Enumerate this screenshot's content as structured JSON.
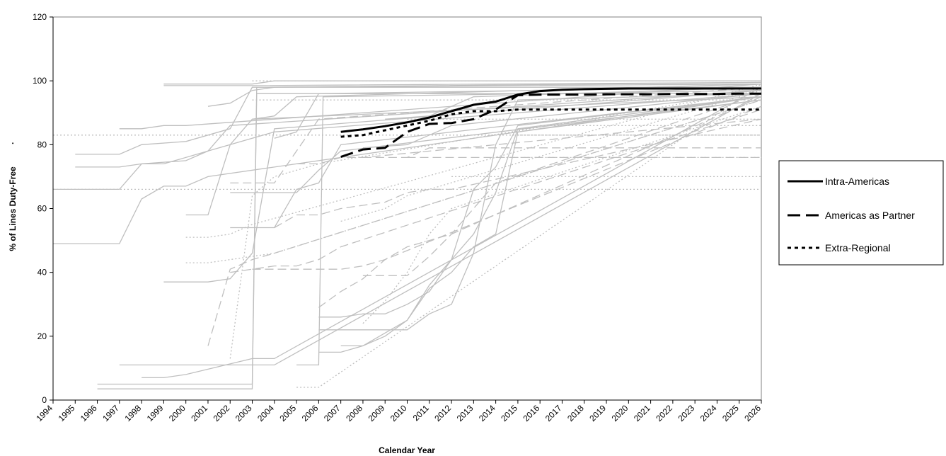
{
  "chart_data": {
    "type": "line",
    "title": "",
    "xlabel": "Calendar Year",
    "ylabel": "% of Lines Duty-Free",
    "ylabel_suffix": "·",
    "xlim": [
      1994,
      2026
    ],
    "ylim": [
      0,
      120
    ],
    "y_ticks": [
      0,
      20,
      40,
      60,
      80,
      100,
      120
    ],
    "x_ticks": [
      "1994",
      "1995",
      "1996",
      "1997",
      "1998",
      "1999",
      "2000",
      "2001",
      "2002",
      "2003",
      "2004",
      "2005",
      "2006",
      "2007",
      "2008",
      "2009",
      "2010",
      "2011",
      "2012",
      "2013",
      "2014",
      "2015",
      "2016",
      "2017",
      "2018",
      "2019",
      "2020",
      "2021",
      "2022",
      "2023",
      "2024",
      "2025",
      "2026"
    ],
    "grid": false,
    "legend_position": "right",
    "colors": {
      "highlight": "#000000",
      "background_series": "#bfbfbf",
      "plot_border": "#808080"
    },
    "series": [
      {
        "name": "Intra-Americas",
        "style": "solid",
        "x": [
          2007,
          2008,
          2009,
          2010,
          2011,
          2012,
          2013,
          2014,
          2015,
          2016,
          2017,
          2018,
          2019,
          2020,
          2021,
          2022,
          2023,
          2024,
          2025,
          2026
        ],
        "values": [
          84.0,
          84.8,
          85.8,
          87.0,
          88.5,
          90.5,
          92.5,
          93.5,
          95.7,
          96.8,
          97.2,
          97.4,
          97.5,
          97.6,
          97.6,
          97.6,
          97.6,
          97.6,
          97.6,
          97.6
        ]
      },
      {
        "name": "Americas as Partner",
        "style": "longdash",
        "x": [
          2007,
          2008,
          2009,
          2010,
          2011,
          2012,
          2013,
          2014,
          2015,
          2016,
          2017,
          2018,
          2019,
          2020,
          2021,
          2022,
          2023,
          2024,
          2025,
          2026
        ],
        "values": [
          76.2,
          78.5,
          79.0,
          84.0,
          86.5,
          86.8,
          88.0,
          91.0,
          95.5,
          95.7,
          95.7,
          95.7,
          95.8,
          95.8,
          95.8,
          95.9,
          95.9,
          95.9,
          96.0,
          96.0
        ]
      },
      {
        "name": "Extra-Regional",
        "style": "shortdash",
        "x": [
          2007,
          2008,
          2009,
          2010,
          2011,
          2012,
          2013,
          2014,
          2015,
          2016,
          2017,
          2018,
          2019,
          2020,
          2021,
          2022,
          2023,
          2024,
          2025,
          2026
        ],
        "values": [
          82.5,
          83.0,
          84.5,
          86.0,
          87.5,
          89.5,
          90.5,
          90.5,
          91.0,
          91.0,
          91.0,
          91.0,
          91.0,
          91.0,
          91.0,
          91.0,
          91.0,
          91.0,
          91.0,
          91.0
        ]
      }
    ],
    "background_series": [
      {
        "style": "solid",
        "x": [
          1994,
          1997,
          1998,
          1999,
          2000,
          2001,
          2026
        ],
        "values": [
          49,
          49,
          63,
          67,
          67,
          70,
          95
        ]
      },
      {
        "style": "solid",
        "x": [
          1994,
          1997,
          1998,
          2000,
          2001,
          2003,
          2004,
          2026
        ],
        "values": [
          66,
          66,
          74,
          75,
          78,
          82,
          84,
          96
        ]
      },
      {
        "style": "solid",
        "x": [
          1995,
          1997,
          1998,
          2000,
          2002,
          2003,
          2026
        ],
        "values": [
          77,
          77,
          80,
          81,
          85,
          98,
          99
        ]
      },
      {
        "style": "solid",
        "x": [
          1995,
          1997,
          1998,
          1999,
          2001,
          2002,
          2026
        ],
        "values": [
          73,
          73,
          74,
          74,
          78,
          86,
          97
        ]
      },
      {
        "style": "solid",
        "x": [
          1997,
          1998,
          1999,
          2000,
          2026
        ],
        "values": [
          85,
          85,
          86,
          86,
          99
        ]
      },
      {
        "style": "solid",
        "x": [
          1999,
          2003,
          2004,
          2026
        ],
        "values": [
          99,
          99,
          100,
          100
        ]
      },
      {
        "style": "solid",
        "x": [
          1999,
          2003,
          2026
        ],
        "values": [
          98.5,
          98.5,
          99.5
        ]
      },
      {
        "style": "solid",
        "x": [
          1996,
          2003,
          2003.2,
          2026
        ],
        "values": [
          5,
          5,
          98,
          98
        ]
      },
      {
        "style": "solid",
        "x": [
          1996,
          2003,
          2003.2,
          2026
        ],
        "values": [
          3.5,
          3.5,
          96,
          96
        ]
      },
      {
        "style": "solid",
        "x": [
          1998,
          1999,
          2000,
          2003,
          2004,
          2026
        ],
        "values": [
          7,
          7,
          8,
          13,
          13,
          98
        ]
      },
      {
        "style": "solid",
        "x": [
          1997,
          2003,
          2004,
          2026
        ],
        "values": [
          11,
          11,
          11,
          96
        ]
      },
      {
        "style": "solid",
        "x": [
          1999,
          2001,
          2002,
          2003,
          2004,
          2026
        ],
        "values": [
          37,
          37,
          38,
          46,
          85,
          97
        ]
      },
      {
        "style": "solid",
        "x": [
          2000,
          2001,
          2002,
          2003,
          2026
        ],
        "values": [
          58,
          58,
          80,
          88,
          95
        ]
      },
      {
        "style": "solid",
        "x": [
          2002,
          2004,
          2005,
          2006,
          2007,
          2026
        ],
        "values": [
          54,
          54,
          66,
          68,
          80,
          95
        ]
      },
      {
        "style": "solid",
        "x": [
          2002,
          2005,
          2006,
          2007,
          2026
        ],
        "values": [
          65,
          65,
          72,
          78,
          94
        ]
      },
      {
        "style": "solid",
        "x": [
          2005,
          2006,
          2006.2,
          2026
        ],
        "values": [
          11,
          11,
          95,
          97
        ]
      },
      {
        "style": "solid",
        "x": [
          2006,
          2007,
          2008,
          2009,
          2010,
          2011,
          2012,
          2013,
          2014,
          2015,
          2026
        ],
        "values": [
          22,
          22,
          22,
          22,
          22,
          27,
          30,
          46,
          80,
          94,
          96
        ]
      },
      {
        "style": "solid",
        "x": [
          2006,
          2007,
          2008,
          2009,
          2010,
          2011,
          2012,
          2013,
          2014,
          2015,
          2026
        ],
        "values": [
          26,
          26,
          27,
          27,
          30,
          34,
          44,
          52,
          65,
          85,
          95
        ]
      },
      {
        "style": "solid",
        "x": [
          2006,
          2007,
          2008,
          2009,
          2010,
          2011,
          2012,
          2013,
          2014,
          2015,
          2026
        ],
        "values": [
          15,
          15,
          17,
          20,
          25,
          36,
          44,
          66,
          73,
          86,
          95
        ]
      },
      {
        "style": "solid",
        "x": [
          2007,
          2008,
          2009,
          2010,
          2011,
          2012,
          2013,
          2014,
          2015,
          2026
        ],
        "values": [
          17,
          17,
          21,
          25,
          35,
          40,
          48,
          52,
          84,
          94
        ]
      },
      {
        "style": "solid",
        "x": [
          2004,
          2005,
          2006,
          2026
        ],
        "values": [
          82,
          84,
          96,
          98
        ]
      },
      {
        "style": "solid",
        "x": [
          2003,
          2004,
          2005,
          2026
        ],
        "values": [
          88,
          89,
          95,
          99
        ]
      },
      {
        "style": "solid",
        "x": [
          2001,
          2002,
          2003,
          2004,
          2026
        ],
        "values": [
          92,
          93,
          97,
          98,
          99.5
        ]
      },
      {
        "style": "solid",
        "x": [
          2008,
          2010,
          2011,
          2012,
          2026
        ],
        "values": [
          79,
          80,
          83,
          86,
          96
        ]
      },
      {
        "style": "solid",
        "x": [
          2009,
          2011,
          2012,
          2013,
          2026
        ],
        "values": [
          88,
          89,
          92,
          95,
          98
        ]
      },
      {
        "style": "longdash",
        "x": [
          2001,
          2002,
          2003,
          2004,
          2026
        ],
        "values": [
          17,
          41,
          44,
          46,
          94
        ]
      },
      {
        "style": "longdash",
        "x": [
          2002,
          2003,
          2004,
          2005,
          2006,
          2007,
          2026
        ],
        "values": [
          40,
          41,
          42,
          42,
          44,
          48,
          91
        ]
      },
      {
        "style": "longdash",
        "x": [
          2003,
          2006,
          2007,
          2008,
          2009,
          2026
        ],
        "values": [
          41,
          41,
          41,
          42,
          44,
          92
        ]
      },
      {
        "style": "longdash",
        "x": [
          2004,
          2005,
          2006,
          2007,
          2008,
          2009,
          2010,
          2011,
          2012,
          2026
        ],
        "values": [
          54,
          58,
          58,
          60,
          61,
          62,
          65,
          66,
          66,
          88
        ]
      },
      {
        "style": "longdash",
        "x": [
          2005,
          2006,
          2007,
          2008,
          2026
        ],
        "values": [
          74,
          74,
          76,
          76,
          88
        ]
      },
      {
        "style": "longdash",
        "x": [
          2006,
          2007,
          2008,
          2009,
          2010,
          2011,
          2012,
          2026
        ],
        "values": [
          29,
          34,
          38,
          44,
          48,
          50,
          52,
          95
        ]
      },
      {
        "style": "longdash",
        "x": [
          2008,
          2010,
          2011,
          2012,
          2013,
          2014,
          2026
        ],
        "values": [
          39,
          39,
          45,
          52,
          60,
          68,
          96
        ]
      },
      {
        "style": "longdash",
        "x": [
          2008,
          2010,
          2011,
          2026
        ],
        "values": [
          76,
          76,
          79,
          79
        ]
      },
      {
        "style": "longdash",
        "x": [
          2010,
          2026
        ],
        "values": [
          76,
          76
        ]
      },
      {
        "style": "longdash",
        "x": [
          2002,
          2004,
          2005,
          2006,
          2026
        ],
        "values": [
          68,
          68,
          78,
          88,
          98
        ]
      },
      {
        "style": "shortdash",
        "x": [
          1994,
          2026
        ],
        "values": [
          83,
          83
        ]
      },
      {
        "style": "shortdash",
        "x": [
          1994,
          2026
        ],
        "values": [
          66,
          66
        ]
      },
      {
        "style": "shortdash",
        "x": [
          2000,
          2001,
          2002,
          2003,
          2026
        ],
        "values": [
          51,
          51,
          52,
          55,
          99
        ]
      },
      {
        "style": "shortdash",
        "x": [
          2000,
          2001,
          2002,
          2003,
          2004,
          2026
        ],
        "values": [
          43,
          43,
          44,
          45,
          46,
          94
        ]
      },
      {
        "style": "shortdash",
        "x": [
          2002,
          2003,
          2004,
          2005,
          2006,
          2026
        ],
        "values": [
          13,
          64,
          70,
          72,
          74,
          97
        ]
      },
      {
        "style": "shortdash",
        "x": [
          2005,
          2006,
          2026
        ],
        "values": [
          4,
          4,
          99
        ]
      },
      {
        "style": "shortdash",
        "x": [
          2012,
          2026
        ],
        "values": [
          70,
          70
        ]
      },
      {
        "style": "shortdash",
        "x": [
          2014,
          2026
        ],
        "values": [
          76,
          76
        ]
      },
      {
        "style": "shortdash",
        "x": [
          2015,
          2026
        ],
        "values": [
          83,
          83
        ]
      },
      {
        "style": "shortdash",
        "x": [
          2016,
          2026
        ],
        "values": [
          86,
          86
        ]
      },
      {
        "style": "shortdash",
        "x": [
          2003,
          2026
        ],
        "values": [
          100,
          100
        ]
      },
      {
        "style": "shortdash",
        "x": [
          2007,
          2008,
          2009,
          2010,
          2011,
          2026
        ],
        "values": [
          56,
          58,
          60,
          64,
          66,
          97
        ]
      },
      {
        "style": "shortdash",
        "x": [
          2008,
          2009,
          2010,
          2011,
          2012,
          2026
        ],
        "values": [
          24,
          31,
          40,
          52,
          60,
          92
        ]
      },
      {
        "style": "shortdash",
        "x": [
          2003,
          2026
        ],
        "values": [
          94,
          94
        ]
      },
      {
        "style": "shortdash",
        "x": [
          2010,
          2026
        ],
        "values": [
          88,
          88
        ]
      }
    ]
  }
}
